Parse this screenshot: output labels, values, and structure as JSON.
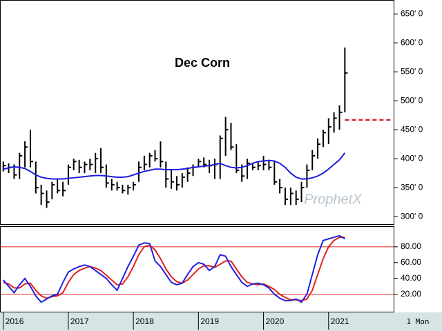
{
  "chart_data": [
    {
      "type": "ohlc",
      "title": "Dec Corn",
      "watermark": "ProphetX",
      "period": "1 Mon",
      "bar_color": "#000000",
      "x": [
        2016,
        2016.083,
        2016.167,
        2016.25,
        2016.333,
        2016.417,
        2016.5,
        2016.583,
        2016.667,
        2016.75,
        2016.833,
        2016.917,
        2017,
        2017.083,
        2017.167,
        2017.25,
        2017.333,
        2017.417,
        2017.5,
        2017.583,
        2017.667,
        2017.75,
        2017.833,
        2017.917,
        2018,
        2018.083,
        2018.167,
        2018.25,
        2018.333,
        2018.417,
        2018.5,
        2018.583,
        2018.667,
        2018.75,
        2018.833,
        2018.917,
        2019,
        2019.083,
        2019.167,
        2019.25,
        2019.333,
        2019.417,
        2019.5,
        2019.583,
        2019.667,
        2019.75,
        2019.833,
        2019.917,
        2020,
        2020.083,
        2020.167,
        2020.25,
        2020.333,
        2020.417,
        2020.5,
        2020.583,
        2020.667,
        2020.75,
        2020.833,
        2020.917,
        2021,
        2021.083,
        2021.167,
        2021.25
      ],
      "high": [
        395,
        392,
        390,
        410,
        430,
        450,
        395,
        355,
        345,
        360,
        365,
        360,
        390,
        400,
        398,
        395,
        400,
        410,
        418,
        390,
        365,
        360,
        355,
        355,
        360,
        395,
        405,
        410,
        415,
        430,
        395,
        380,
        370,
        375,
        385,
        390,
        400,
        402,
        398,
        400,
        440,
        472,
        462,
        425,
        390,
        400,
        392,
        395,
        405,
        398,
        395,
        365,
        350,
        350,
        345,
        360,
        390,
        415,
        435,
        450,
        470,
        480,
        492,
        592
      ],
      "low": [
        378,
        375,
        365,
        365,
        385,
        385,
        340,
        320,
        315,
        330,
        340,
        335,
        355,
        380,
        375,
        375,
        380,
        375,
        375,
        350,
        345,
        345,
        340,
        338,
        345,
        360,
        380,
        385,
        395,
        385,
        350,
        348,
        345,
        350,
        360,
        370,
        385,
        385,
        375,
        365,
        365,
        405,
        415,
        375,
        360,
        365,
        380,
        380,
        380,
        380,
        355,
        340,
        320,
        320,
        320,
        325,
        350,
        380,
        400,
        420,
        425,
        445,
        450,
        480
      ],
      "close": [
        388,
        385,
        372,
        405,
        420,
        395,
        350,
        340,
        325,
        355,
        345,
        345,
        385,
        395,
        385,
        390,
        390,
        400,
        385,
        358,
        355,
        350,
        345,
        350,
        355,
        385,
        390,
        405,
        400,
        395,
        365,
        360,
        355,
        368,
        375,
        385,
        395,
        390,
        388,
        390,
        435,
        450,
        420,
        380,
        370,
        392,
        385,
        388,
        390,
        385,
        360,
        350,
        330,
        340,
        330,
        350,
        380,
        405,
        425,
        445,
        455,
        470,
        480,
        548
      ],
      "ma": {
        "color": "#1c1ce0",
        "values": [
          382,
          384,
          386,
          385,
          383,
          378,
          372,
          368,
          366,
          365,
          365,
          365,
          366,
          367,
          368,
          369,
          370,
          371,
          371,
          370,
          369,
          368,
          368,
          369,
          372,
          375,
          378,
          380,
          382,
          382,
          381,
          381,
          381,
          382,
          383,
          385,
          386,
          387,
          388,
          390,
          392,
          388,
          385,
          384,
          385,
          388,
          392,
          395,
          396,
          397,
          396,
          392,
          385,
          375,
          368,
          365,
          365,
          367,
          370,
          375,
          382,
          390,
          398,
          410
        ]
      },
      "reference_line": {
        "value": 467,
        "color": "#e02020"
      },
      "ylim": [
        287,
        674
      ],
      "yticks": [
        {
          "value": 300,
          "label": "300' 0"
        },
        {
          "value": 350,
          "label": "350' 0"
        },
        {
          "value": 400,
          "label": "400' 0"
        },
        {
          "value": 450,
          "label": "450' 0"
        },
        {
          "value": 500,
          "label": "500' 0"
        },
        {
          "value": 550,
          "label": "550' 0"
        },
        {
          "value": 600,
          "label": "600' 0"
        },
        {
          "value": 650,
          "label": "650' 0"
        }
      ],
      "xlim": [
        2015.95,
        2022
      ],
      "xticks": [
        2016,
        2017,
        2018,
        2019,
        2020,
        2021
      ]
    },
    {
      "type": "line",
      "series": [
        {
          "color": "#2020e0",
          "values": [
            38,
            30,
            22,
            32,
            40,
            30,
            18,
            10,
            14,
            18,
            20,
            35,
            48,
            52,
            55,
            57,
            55,
            50,
            45,
            40,
            32,
            25,
            40,
            55,
            68,
            82,
            85,
            84,
            62,
            55,
            45,
            35,
            32,
            34,
            45,
            55,
            60,
            58,
            50,
            55,
            70,
            68,
            55,
            45,
            35,
            30,
            33,
            34,
            32,
            28,
            20,
            15,
            12,
            12,
            14,
            10,
            20,
            45,
            70,
            88,
            90,
            92,
            94,
            90
          ]
        },
        {
          "color": "#e02020",
          "values": [
            35,
            33,
            28,
            28,
            33,
            34,
            25,
            18,
            15,
            17,
            18,
            22,
            35,
            45,
            50,
            53,
            55,
            53,
            50,
            44,
            38,
            32,
            33,
            42,
            55,
            70,
            80,
            82,
            76,
            65,
            52,
            42,
            36,
            34,
            38,
            45,
            52,
            56,
            56,
            54,
            58,
            62,
            62,
            52,
            42,
            35,
            33,
            32,
            33,
            30,
            26,
            20,
            16,
            13,
            13,
            12,
            14,
            25,
            45,
            65,
            80,
            88,
            92,
            92
          ]
        }
      ],
      "levels": [
        80,
        20
      ],
      "level_color": "#e02020",
      "ylim": [
        -2,
        106
      ],
      "yticks": [
        {
          "value": 20,
          "label": "20.00"
        },
        {
          "value": 40,
          "label": "40.00"
        },
        {
          "value": 60,
          "label": "60.00"
        },
        {
          "value": 80,
          "label": "80.00"
        }
      ]
    }
  ]
}
